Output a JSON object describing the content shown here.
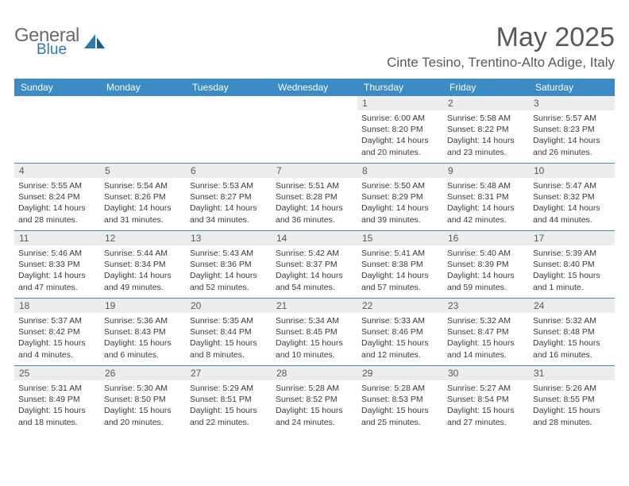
{
  "brand": {
    "line1": "General",
    "line2": "Blue"
  },
  "title": "May 2025",
  "location": "Cinte Tesino, Trentino-Alto Adige, Italy",
  "colors": {
    "header_bg": "#3b8bc4",
    "header_text": "#ffffff",
    "daynum_bg": "#ededed",
    "text": "#595959",
    "rule": "#3b8bc4",
    "brand_blue": "#2a7ab8",
    "brand_grey": "#6b6b6b"
  },
  "day_names": [
    "Sunday",
    "Monday",
    "Tuesday",
    "Wednesday",
    "Thursday",
    "Friday",
    "Saturday"
  ],
  "weeks": [
    [
      null,
      null,
      null,
      null,
      {
        "n": "1",
        "sunrise": "6:00 AM",
        "sunset": "8:20 PM",
        "daylight": "14 hours and 20 minutes."
      },
      {
        "n": "2",
        "sunrise": "5:58 AM",
        "sunset": "8:22 PM",
        "daylight": "14 hours and 23 minutes."
      },
      {
        "n": "3",
        "sunrise": "5:57 AM",
        "sunset": "8:23 PM",
        "daylight": "14 hours and 26 minutes."
      }
    ],
    [
      {
        "n": "4",
        "sunrise": "5:55 AM",
        "sunset": "8:24 PM",
        "daylight": "14 hours and 28 minutes."
      },
      {
        "n": "5",
        "sunrise": "5:54 AM",
        "sunset": "8:26 PM",
        "daylight": "14 hours and 31 minutes."
      },
      {
        "n": "6",
        "sunrise": "5:53 AM",
        "sunset": "8:27 PM",
        "daylight": "14 hours and 34 minutes."
      },
      {
        "n": "7",
        "sunrise": "5:51 AM",
        "sunset": "8:28 PM",
        "daylight": "14 hours and 36 minutes."
      },
      {
        "n": "8",
        "sunrise": "5:50 AM",
        "sunset": "8:29 PM",
        "daylight": "14 hours and 39 minutes."
      },
      {
        "n": "9",
        "sunrise": "5:48 AM",
        "sunset": "8:31 PM",
        "daylight": "14 hours and 42 minutes."
      },
      {
        "n": "10",
        "sunrise": "5:47 AM",
        "sunset": "8:32 PM",
        "daylight": "14 hours and 44 minutes."
      }
    ],
    [
      {
        "n": "11",
        "sunrise": "5:46 AM",
        "sunset": "8:33 PM",
        "daylight": "14 hours and 47 minutes."
      },
      {
        "n": "12",
        "sunrise": "5:44 AM",
        "sunset": "8:34 PM",
        "daylight": "14 hours and 49 minutes."
      },
      {
        "n": "13",
        "sunrise": "5:43 AM",
        "sunset": "8:36 PM",
        "daylight": "14 hours and 52 minutes."
      },
      {
        "n": "14",
        "sunrise": "5:42 AM",
        "sunset": "8:37 PM",
        "daylight": "14 hours and 54 minutes."
      },
      {
        "n": "15",
        "sunrise": "5:41 AM",
        "sunset": "8:38 PM",
        "daylight": "14 hours and 57 minutes."
      },
      {
        "n": "16",
        "sunrise": "5:40 AM",
        "sunset": "8:39 PM",
        "daylight": "14 hours and 59 minutes."
      },
      {
        "n": "17",
        "sunrise": "5:39 AM",
        "sunset": "8:40 PM",
        "daylight": "15 hours and 1 minute."
      }
    ],
    [
      {
        "n": "18",
        "sunrise": "5:37 AM",
        "sunset": "8:42 PM",
        "daylight": "15 hours and 4 minutes."
      },
      {
        "n": "19",
        "sunrise": "5:36 AM",
        "sunset": "8:43 PM",
        "daylight": "15 hours and 6 minutes."
      },
      {
        "n": "20",
        "sunrise": "5:35 AM",
        "sunset": "8:44 PM",
        "daylight": "15 hours and 8 minutes."
      },
      {
        "n": "21",
        "sunrise": "5:34 AM",
        "sunset": "8:45 PM",
        "daylight": "15 hours and 10 minutes."
      },
      {
        "n": "22",
        "sunrise": "5:33 AM",
        "sunset": "8:46 PM",
        "daylight": "15 hours and 12 minutes."
      },
      {
        "n": "23",
        "sunrise": "5:32 AM",
        "sunset": "8:47 PM",
        "daylight": "15 hours and 14 minutes."
      },
      {
        "n": "24",
        "sunrise": "5:32 AM",
        "sunset": "8:48 PM",
        "daylight": "15 hours and 16 minutes."
      }
    ],
    [
      {
        "n": "25",
        "sunrise": "5:31 AM",
        "sunset": "8:49 PM",
        "daylight": "15 hours and 18 minutes."
      },
      {
        "n": "26",
        "sunrise": "5:30 AM",
        "sunset": "8:50 PM",
        "daylight": "15 hours and 20 minutes."
      },
      {
        "n": "27",
        "sunrise": "5:29 AM",
        "sunset": "8:51 PM",
        "daylight": "15 hours and 22 minutes."
      },
      {
        "n": "28",
        "sunrise": "5:28 AM",
        "sunset": "8:52 PM",
        "daylight": "15 hours and 24 minutes."
      },
      {
        "n": "29",
        "sunrise": "5:28 AM",
        "sunset": "8:53 PM",
        "daylight": "15 hours and 25 minutes."
      },
      {
        "n": "30",
        "sunrise": "5:27 AM",
        "sunset": "8:54 PM",
        "daylight": "15 hours and 27 minutes."
      },
      {
        "n": "31",
        "sunrise": "5:26 AM",
        "sunset": "8:55 PM",
        "daylight": "15 hours and 28 minutes."
      }
    ]
  ],
  "labels": {
    "sunrise": "Sunrise:",
    "sunset": "Sunset:",
    "daylight": "Daylight:"
  }
}
